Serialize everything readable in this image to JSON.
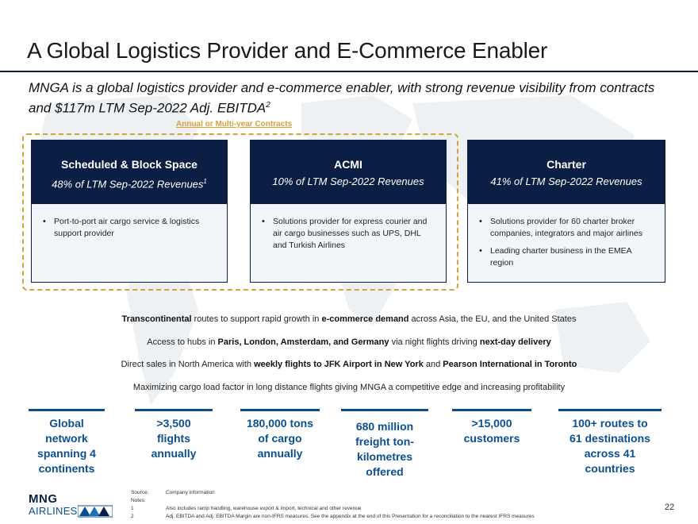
{
  "title": "A Global Logistics Provider and E-Commerce Enabler",
  "subtitle": {
    "text": "MNGA is a global logistics provider and e-commerce enabler, with strong revenue visibility from contracts and $117m LTM Sep-2022 Adj. EBITDA",
    "sup": "2"
  },
  "contract_label": "Annual or Multi-year Contracts",
  "cards": [
    {
      "title": "Scheduled & Block Space",
      "subtitle": "48% of LTM Sep-2022 Revenues",
      "subtitle_sup": "1",
      "bullets": [
        "Port-to-port air cargo service & logistics support provider"
      ]
    },
    {
      "title": "ACMI",
      "subtitle": "10% of LTM Sep-2022 Revenues",
      "subtitle_sup": "",
      "bullets": [
        "Solutions provider for express courier and air cargo businesses such as UPS, DHL and Turkish Airlines"
      ]
    },
    {
      "title": "Charter",
      "subtitle": "41% of LTM Sep-2022 Revenues",
      "subtitle_sup": "",
      "bullets": [
        "Solutions provider for 60 charter broker companies, integrators and major airlines",
        "Leading charter business in the EMEA region"
      ]
    }
  ],
  "statements": [
    [
      {
        "t": "Transcontinental",
        "b": true
      },
      {
        "t": " routes to support rapid growth in ",
        "b": false
      },
      {
        "t": "e-commerce demand",
        "b": true
      },
      {
        "t": " across Asia, the EU, and the United States",
        "b": false
      }
    ],
    [
      {
        "t": "Access to hubs in ",
        "b": false
      },
      {
        "t": "Paris, London, Amsterdam, and Germany",
        "b": true
      },
      {
        "t": " via night flights driving ",
        "b": false
      },
      {
        "t": "next-day delivery",
        "b": true
      }
    ],
    [
      {
        "t": "Direct sales in North America with ",
        "b": false
      },
      {
        "t": "weekly flights to JFK Airport in New York",
        "b": true
      },
      {
        "t": " and ",
        "b": false
      },
      {
        "t": "Pearson International in Toronto",
        "b": true
      }
    ],
    [
      {
        "t": "Maximizing cargo load factor in long distance flights giving MNGA a competitive edge and increasing profitability",
        "b": false
      }
    ]
  ],
  "kpis": [
    {
      "lines": [
        "Global",
        "network",
        "spanning 4",
        "continents"
      ]
    },
    {
      "lines": [
        ">3,500",
        "flights",
        "annually"
      ]
    },
    {
      "lines": [
        "180,000 tons",
        "of cargo",
        "annually"
      ]
    },
    {
      "lines": [
        "680 million",
        "freight ton-",
        "kilometres",
        "offered"
      ]
    },
    {
      "lines": [
        ">15,000",
        "customers"
      ]
    },
    {
      "lines": [
        "100+ routes to",
        "61 destinations",
        "across 41",
        "countries"
      ]
    }
  ],
  "logo": {
    "line1": "MNG",
    "line2": "AIRLINES"
  },
  "notes": [
    {
      "k": "Source:",
      "v": "Company information"
    },
    {
      "k": "Notes:",
      "v": ""
    },
    {
      "k": "1",
      "v": "Also includes ramp handling, warehouse export & import, technical and other revenue"
    },
    {
      "k": "2",
      "v": "Adj. EBITDA and Adj. EBITDA Margin are non-IFRS measures. See the appendix at the end of this Presentation for a reconciliation to the nearest IFRS measures"
    }
  ],
  "page_number": "22",
  "colors": {
    "navy": "#0b1f44",
    "blue": "#0b4f91",
    "gold": "#d9a13a"
  }
}
